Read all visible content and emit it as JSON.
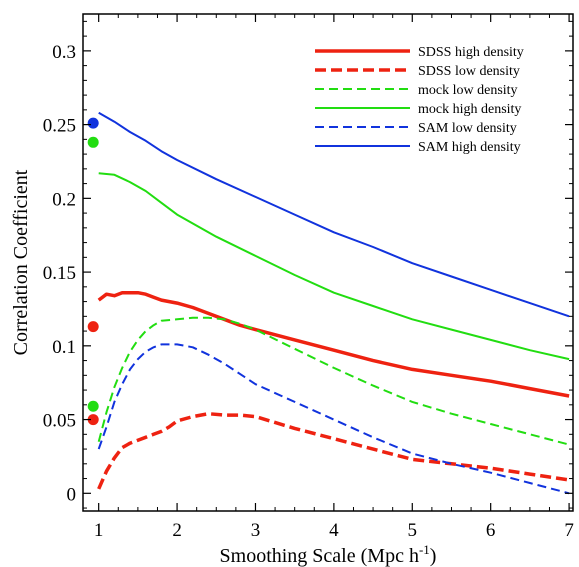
{
  "chart_data": {
    "type": "line",
    "xlabel": "Smoothing Scale (Mpc h",
    "xlabel_sup": "-1",
    "xlabel_close": ")",
    "ylabel": "Correlation Coefficient",
    "xlim": [
      0.8,
      7.05
    ],
    "ylim": [
      -0.012,
      0.325
    ],
    "xticks": [
      1,
      2,
      3,
      4,
      5,
      6,
      7
    ],
    "yticks": [
      0,
      0.05,
      0.1,
      0.15,
      0.2,
      0.25,
      0.3
    ],
    "ytick_labels": [
      "0",
      "0.05",
      "0.1",
      "0.15",
      "0.2",
      "0.25",
      "0.3"
    ],
    "legend_position": "top-right",
    "grid": false,
    "series": [
      {
        "name": "SDSS high density",
        "color": "#ee2211",
        "style": "solid",
        "width": 3.5,
        "x": [
          1.0,
          1.1,
          1.2,
          1.3,
          1.4,
          1.5,
          1.6,
          1.7,
          1.8,
          2.0,
          2.2,
          2.4,
          2.6,
          2.8,
          3.0,
          3.5,
          4.0,
          4.5,
          5.0,
          5.5,
          6.0,
          6.5,
          7.0
        ],
        "y": [
          0.131,
          0.135,
          0.134,
          0.136,
          0.136,
          0.136,
          0.135,
          0.133,
          0.131,
          0.129,
          0.126,
          0.122,
          0.118,
          0.114,
          0.111,
          0.104,
          0.097,
          0.09,
          0.084,
          0.08,
          0.076,
          0.071,
          0.066
        ]
      },
      {
        "name": "SDSS low density",
        "color": "#ee2211",
        "style": "dashed",
        "width": 3.5,
        "x": [
          1.0,
          1.1,
          1.2,
          1.3,
          1.4,
          1.5,
          1.6,
          1.7,
          1.8,
          1.9,
          2.0,
          2.2,
          2.4,
          2.6,
          2.8,
          3.0,
          3.5,
          4.0,
          4.5,
          5.0,
          5.5,
          6.0,
          6.5,
          7.0
        ],
        "y": [
          0.003,
          0.015,
          0.024,
          0.031,
          0.034,
          0.036,
          0.038,
          0.04,
          0.042,
          0.045,
          0.049,
          0.052,
          0.054,
          0.053,
          0.053,
          0.052,
          0.044,
          0.037,
          0.03,
          0.023,
          0.02,
          0.017,
          0.013,
          0.009
        ]
      },
      {
        "name": "mock low density",
        "color": "#22dd11",
        "style": "dashed",
        "width": 2,
        "x": [
          1.0,
          1.1,
          1.2,
          1.3,
          1.4,
          1.5,
          1.6,
          1.7,
          1.8,
          2.0,
          2.2,
          2.4,
          2.6,
          2.8,
          3.0,
          3.5,
          4.0,
          4.5,
          5.0,
          5.5,
          6.0,
          6.5,
          7.0
        ],
        "y": [
          0.035,
          0.055,
          0.072,
          0.085,
          0.096,
          0.104,
          0.11,
          0.114,
          0.117,
          0.118,
          0.119,
          0.119,
          0.118,
          0.115,
          0.111,
          0.098,
          0.085,
          0.073,
          0.062,
          0.054,
          0.047,
          0.04,
          0.033
        ]
      },
      {
        "name": "mock high density",
        "color": "#22dd11",
        "style": "solid",
        "width": 2,
        "x": [
          1.0,
          1.2,
          1.4,
          1.6,
          1.8,
          2.0,
          2.5,
          3.0,
          3.5,
          4.0,
          4.5,
          5.0,
          5.5,
          6.0,
          6.5,
          7.0
        ],
        "y": [
          0.217,
          0.216,
          0.211,
          0.205,
          0.197,
          0.189,
          0.174,
          0.161,
          0.148,
          0.136,
          0.127,
          0.118,
          0.111,
          0.104,
          0.097,
          0.091
        ]
      },
      {
        "name": "SAM low density",
        "color": "#1133dd",
        "style": "dashed",
        "width": 2,
        "x": [
          1.0,
          1.1,
          1.2,
          1.3,
          1.4,
          1.5,
          1.6,
          1.7,
          1.8,
          1.9,
          2.0,
          2.1,
          2.2,
          2.4,
          2.6,
          2.8,
          3.0,
          3.5,
          4.0,
          4.5,
          5.0,
          5.5,
          6.0,
          6.5,
          7.0
        ],
        "y": [
          0.03,
          0.045,
          0.062,
          0.074,
          0.084,
          0.091,
          0.096,
          0.099,
          0.101,
          0.101,
          0.101,
          0.1,
          0.099,
          0.094,
          0.088,
          0.081,
          0.074,
          0.062,
          0.05,
          0.038,
          0.027,
          0.02,
          0.014,
          0.007,
          0.0
        ]
      },
      {
        "name": "SAM high density",
        "color": "#1133dd",
        "style": "solid",
        "width": 2,
        "x": [
          1.0,
          1.2,
          1.4,
          1.6,
          1.8,
          2.0,
          2.5,
          3.0,
          3.5,
          4.0,
          4.5,
          5.0,
          5.5,
          6.0,
          6.5,
          7.0
        ],
        "y": [
          0.258,
          0.252,
          0.245,
          0.239,
          0.232,
          0.226,
          0.213,
          0.201,
          0.189,
          0.177,
          0.167,
          0.156,
          0.147,
          0.138,
          0.129,
          0.12
        ]
      }
    ],
    "markers": [
      {
        "x": 0.93,
        "y": 0.251,
        "color": "#1133dd"
      },
      {
        "x": 0.93,
        "y": 0.238,
        "color": "#22dd11"
      },
      {
        "x": 0.93,
        "y": 0.113,
        "color": "#ee2211"
      },
      {
        "x": 0.93,
        "y": 0.059,
        "color": "#22dd11"
      },
      {
        "x": 0.93,
        "y": 0.05,
        "color": "#ee2211"
      }
    ]
  }
}
